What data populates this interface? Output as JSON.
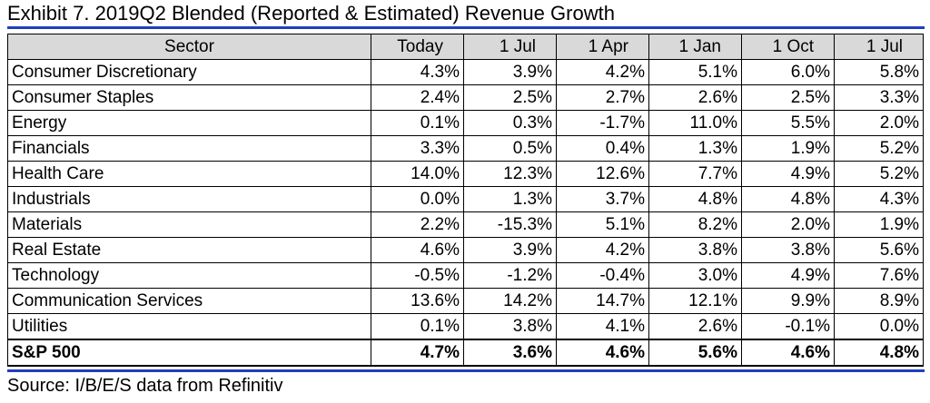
{
  "title": "Exhibit 7.  2019Q2 Blended (Reported & Estimated) Revenue Growth",
  "colors": {
    "rule": "#1f3fbf",
    "header_bg": "#d9d9d9"
  },
  "table": {
    "headers": [
      "Sector",
      "Today",
      "1 Jul",
      "1 Apr",
      "1 Jan",
      "1 Oct",
      "1 Jul"
    ],
    "rows": [
      {
        "sector": "Consumer Discretionary",
        "values": [
          "4.3%",
          "3.9%",
          "4.2%",
          "5.1%",
          "6.0%",
          "5.8%"
        ]
      },
      {
        "sector": "Consumer Staples",
        "values": [
          "2.4%",
          "2.5%",
          "2.7%",
          "2.6%",
          "2.5%",
          "3.3%"
        ]
      },
      {
        "sector": "Energy",
        "values": [
          "0.1%",
          "0.3%",
          "-1.7%",
          "11.0%",
          "5.5%",
          "2.0%"
        ]
      },
      {
        "sector": "Financials",
        "values": [
          "3.3%",
          "0.5%",
          "0.4%",
          "1.3%",
          "1.9%",
          "5.2%"
        ]
      },
      {
        "sector": "Health Care",
        "values": [
          "14.0%",
          "12.3%",
          "12.6%",
          "7.7%",
          "4.9%",
          "5.2%"
        ]
      },
      {
        "sector": "Industrials",
        "values": [
          "0.0%",
          "1.3%",
          "3.7%",
          "4.8%",
          "4.8%",
          "4.3%"
        ]
      },
      {
        "sector": "Materials",
        "values": [
          "2.2%",
          "-15.3%",
          "5.1%",
          "8.2%",
          "2.0%",
          "1.9%"
        ]
      },
      {
        "sector": "Real Estate",
        "values": [
          "4.6%",
          "3.9%",
          "4.2%",
          "3.8%",
          "3.8%",
          "5.6%"
        ]
      },
      {
        "sector": "Technology",
        "values": [
          "-0.5%",
          "-1.2%",
          "-0.4%",
          "3.0%",
          "4.9%",
          "7.6%"
        ]
      },
      {
        "sector": "Communication Services",
        "values": [
          "13.6%",
          "14.2%",
          "14.7%",
          "12.1%",
          "9.9%",
          "8.9%"
        ]
      },
      {
        "sector": "Utilities",
        "values": [
          "0.1%",
          "3.8%",
          "4.1%",
          "2.6%",
          "-0.1%",
          "0.0%"
        ]
      }
    ],
    "total": {
      "sector": "S&P 500",
      "values": [
        "4.7%",
        "3.6%",
        "4.6%",
        "5.6%",
        "4.6%",
        "4.8%"
      ]
    }
  },
  "source": "Source: I/B/E/S data from Refinitiv"
}
